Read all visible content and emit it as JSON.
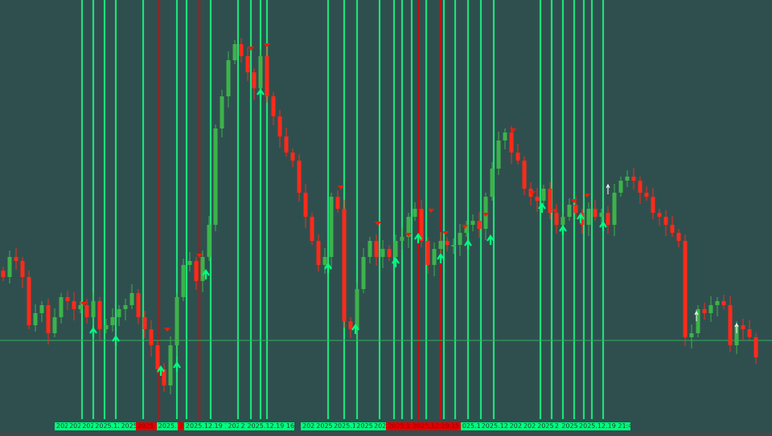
{
  "chart_data": {
    "type": "candlestick",
    "title": "",
    "colors": {
      "background": "#2f4f4f",
      "bull": "#3cb34a",
      "bear": "#ff2a1a",
      "signal_line_green": "#1ee07a",
      "signal_line_red": "#c01010",
      "buy_arrow": "#00ff7f",
      "sell_marker": "#ff1a00",
      "level": "#2fb15a"
    },
    "closes": [
      198,
      223,
      218,
      198,
      138,
      153,
      163,
      128,
      148,
      173,
      168,
      158,
      163,
      148,
      168,
      133,
      138,
      148,
      158,
      163,
      178,
      148,
      133,
      113,
      83,
      63,
      113,
      173,
      213,
      218,
      193,
      223,
      263,
      383,
      423,
      468,
      488,
      473,
      453,
      433,
      473,
      423,
      398,
      373,
      353,
      343,
      303,
      273,
      243,
      213,
      223,
      298,
      283,
      143,
      133,
      183,
      223,
      243,
      223,
      233,
      223,
      243,
      248,
      273,
      283,
      243,
      213,
      233,
      243,
      238,
      238,
      253,
      263,
      268,
      258,
      298,
      333,
      368,
      378,
      353,
      343,
      308,
      298,
      293,
      308,
      278,
      263,
      273,
      288,
      278,
      263,
      283,
      273,
      278,
      263,
      303,
      318,
      323,
      318,
      303,
      298,
      278,
      273,
      263,
      253,
      243,
      123,
      128,
      158,
      153,
      163,
      168,
      163,
      113,
      138,
      133,
      123,
      98
    ],
    "level": 119,
    "green_lines_index": [
      12.25,
      14,
      15.75,
      17.5,
      21.75,
      27,
      28.5,
      32.25,
      36.5,
      38.5,
      40,
      41,
      50.5,
      53,
      55,
      58.5,
      60.75,
      62,
      63.5,
      65.75,
      68.5,
      70.25,
      72.25,
      74.25,
      76.25,
      83.5,
      85.25,
      87,
      88.75,
      90.25,
      91.5,
      93.25
    ],
    "red_lines_index": [
      24.25,
      30.5,
      64.5,
      68
    ],
    "buy_arrows": [
      [
        14,
        131
      ],
      [
        17.5,
        121
      ],
      [
        24.5,
        83
      ],
      [
        27,
        88
      ],
      [
        31.5,
        203
      ],
      [
        40,
        428
      ],
      [
        50.5,
        211
      ],
      [
        54.75,
        135
      ],
      [
        61,
        218
      ],
      [
        64.5,
        248
      ],
      [
        68,
        223
      ],
      [
        72.25,
        240
      ],
      [
        75.75,
        246
      ],
      [
        83.75,
        286
      ],
      [
        87,
        258
      ],
      [
        89.75,
        273
      ],
      [
        93.25,
        263
      ]
    ],
    "sell_markers": [
      [
        12.5,
        165
      ],
      [
        25.5,
        133
      ],
      [
        30.5,
        225
      ],
      [
        38.5,
        483
      ],
      [
        41,
        487
      ],
      [
        52.5,
        310
      ],
      [
        58.25,
        265
      ],
      [
        63,
        251
      ],
      [
        66.5,
        281
      ],
      [
        68.75,
        253
      ],
      [
        71.75,
        261
      ],
      [
        75,
        276
      ],
      [
        79.25,
        381
      ],
      [
        82.25,
        303
      ],
      [
        85.75,
        281
      ],
      [
        88.75,
        293
      ],
      [
        90.75,
        300
      ]
    ],
    "white_arrows": [
      [
        94,
        311
      ],
      [
        107.75,
        153
      ],
      [
        114,
        138
      ]
    ]
  },
  "time_strip_left": [
    {
      "t": "202",
      "red": false
    },
    {
      "t": "202",
      "red": false
    },
    {
      "t": "202",
      "red": false
    },
    {
      "t": "2025.12.",
      "red": false
    },
    {
      "t": "2025",
      "red": false
    },
    {
      "t": "2025.1",
      "red": true
    },
    {
      "t": "2025.1",
      "red": false
    },
    {
      "t": "2",
      "red": true
    },
    {
      "t": "2025.12.19 15:",
      "red": false
    },
    {
      "t": "202",
      "red": false
    },
    {
      "t": "2",
      "red": false
    },
    {
      "t": "2025.12.19 16:45",
      "red": false
    }
  ],
  "time_strip_right": [
    {
      "t": "202",
      "red": false
    },
    {
      "t": "2025",
      "red": false
    },
    {
      "t": "2025.1",
      "red": false
    },
    {
      "t": "2025",
      "red": false
    },
    {
      "t": "202",
      "red": false
    },
    {
      "t": "2025.1 2025.12.19 15:30",
      "red": true
    },
    {
      "t": "025.1",
      "red": false
    },
    {
      "t": "2025.12.",
      "red": false
    },
    {
      "t": "202",
      "red": false
    },
    {
      "t": "202",
      "red": false
    },
    {
      "t": "2025",
      "red": false
    },
    {
      "t": "2",
      "red": false
    },
    {
      "t": "2025",
      "red": false
    },
    {
      "t": "2025.12.19 21:45",
      "red": false
    }
  ]
}
